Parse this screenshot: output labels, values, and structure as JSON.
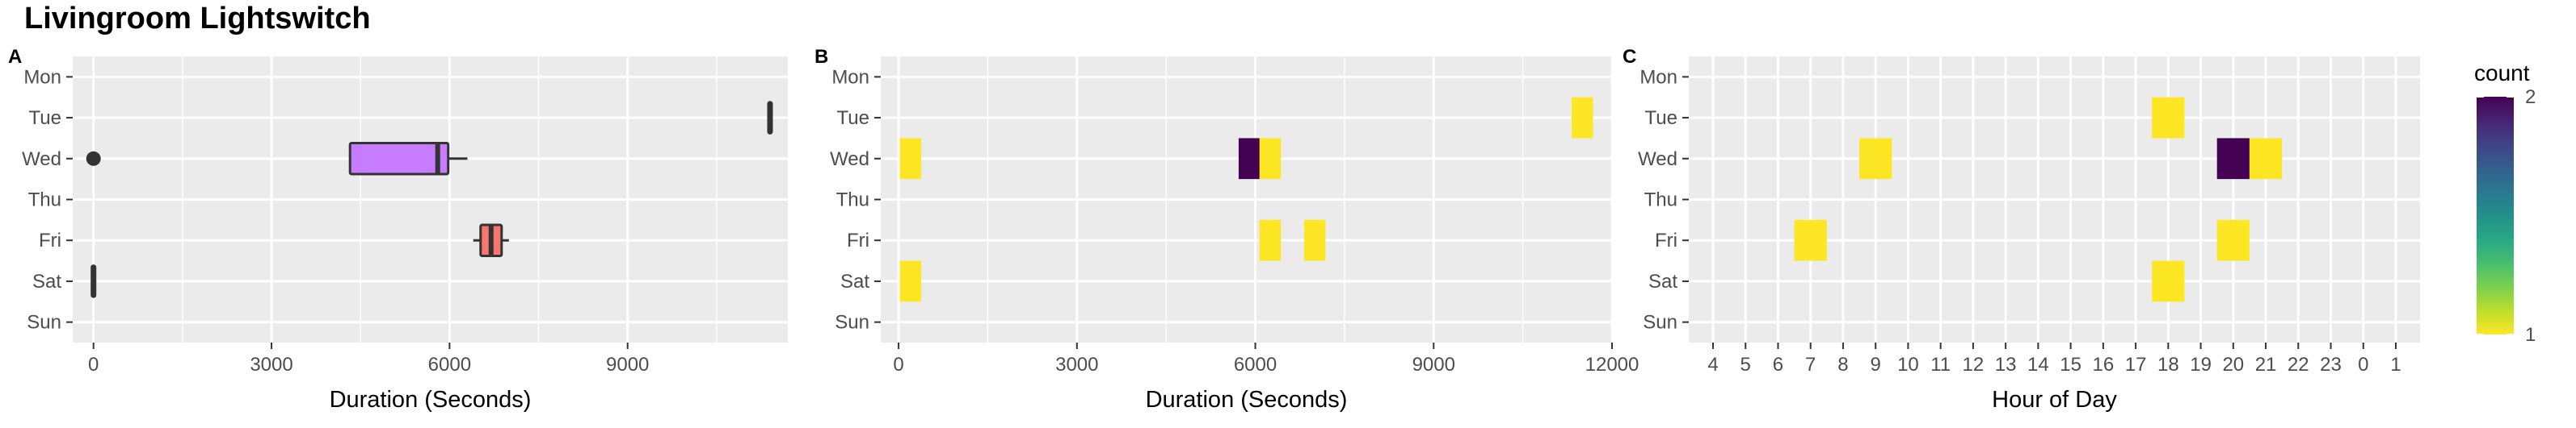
{
  "title": "Livingroom Lightswitch",
  "days": [
    "Mon",
    "Tue",
    "Wed",
    "Thu",
    "Fri",
    "Sat",
    "Sun"
  ],
  "colors": {
    "panel_bg": "#EBEBEB",
    "grid": "#FFFFFF",
    "box_wed": "#C77CFF",
    "box_fri": "#F8766D",
    "viridis_low": "#FDE725",
    "viridis_mid": "#21908C",
    "viridis_high": "#440154"
  },
  "chart_data": [
    {
      "panel": "A",
      "type": "boxplot",
      "xlabel": "Duration (Seconds)",
      "xlim": [
        -350,
        11700
      ],
      "x_ticks": [
        0,
        3000,
        6000,
        9000
      ],
      "x_tick_labels": [
        "0",
        "3000",
        "6000",
        "9000"
      ],
      "boxes": [
        {
          "day": "Tue",
          "min": 11400,
          "q1": 11400,
          "median": 11400,
          "q3": 11400,
          "max": 11400,
          "fill": "#7CAE00",
          "outliers": []
        },
        {
          "day": "Wed",
          "min": 4350,
          "q1": 4350,
          "median": 5800,
          "q3": 5950,
          "max": 6300,
          "fill": "#C77CFF",
          "outliers": [
            0
          ]
        },
        {
          "day": "Fri",
          "min": 6400,
          "q1": 6550,
          "median": 6700,
          "q3": 6850,
          "max": 7000,
          "fill": "#F8766D",
          "outliers": []
        },
        {
          "day": "Sat",
          "min": 0,
          "q1": 0,
          "median": 0,
          "q3": 0,
          "max": 0,
          "fill": "#00BFC4",
          "outliers": []
        }
      ]
    },
    {
      "panel": "B",
      "type": "heatmap",
      "xlabel": "Duration (Seconds)",
      "xlim": [
        -300,
        12000
      ],
      "x_ticks": [
        0,
        3000,
        6000,
        9000,
        12000
      ],
      "x_tick_labels": [
        "0",
        "3000",
        "6000",
        "9000",
        "12000"
      ],
      "bin_width": 360,
      "cells": [
        {
          "day": "Tue",
          "x": 11500,
          "count": 1
        },
        {
          "day": "Wed",
          "x": 200,
          "count": 1
        },
        {
          "day": "Wed",
          "x": 5900,
          "count": 2
        },
        {
          "day": "Wed",
          "x": 6250,
          "count": 1
        },
        {
          "day": "Fri",
          "x": 6250,
          "count": 1
        },
        {
          "day": "Fri",
          "x": 7000,
          "count": 1
        },
        {
          "day": "Sat",
          "x": 200,
          "count": 1
        }
      ]
    },
    {
      "panel": "C",
      "type": "heatmap",
      "xlabel": "Hour of Day",
      "hour_labels": [
        "4",
        "5",
        "6",
        "7",
        "8",
        "9",
        "10",
        "11",
        "12",
        "13",
        "14",
        "15",
        "16",
        "17",
        "18",
        "19",
        "20",
        "21",
        "22",
        "23",
        "0",
        "1"
      ],
      "cells": [
        {
          "day": "Tue",
          "hour": "18",
          "count": 1
        },
        {
          "day": "Wed",
          "hour": "9",
          "count": 1
        },
        {
          "day": "Wed",
          "hour": "20",
          "count": 2
        },
        {
          "day": "Wed",
          "hour": "21",
          "count": 1
        },
        {
          "day": "Fri",
          "hour": "7",
          "count": 1
        },
        {
          "day": "Fri",
          "hour": "20",
          "count": 1
        },
        {
          "day": "Sat",
          "hour": "18",
          "count": 1
        }
      ]
    }
  ],
  "legend": {
    "title": "count",
    "min": 1,
    "max": 2,
    "tick_labels": [
      "1",
      "2"
    ]
  },
  "panel_labels": [
    "A",
    "B",
    "C"
  ]
}
